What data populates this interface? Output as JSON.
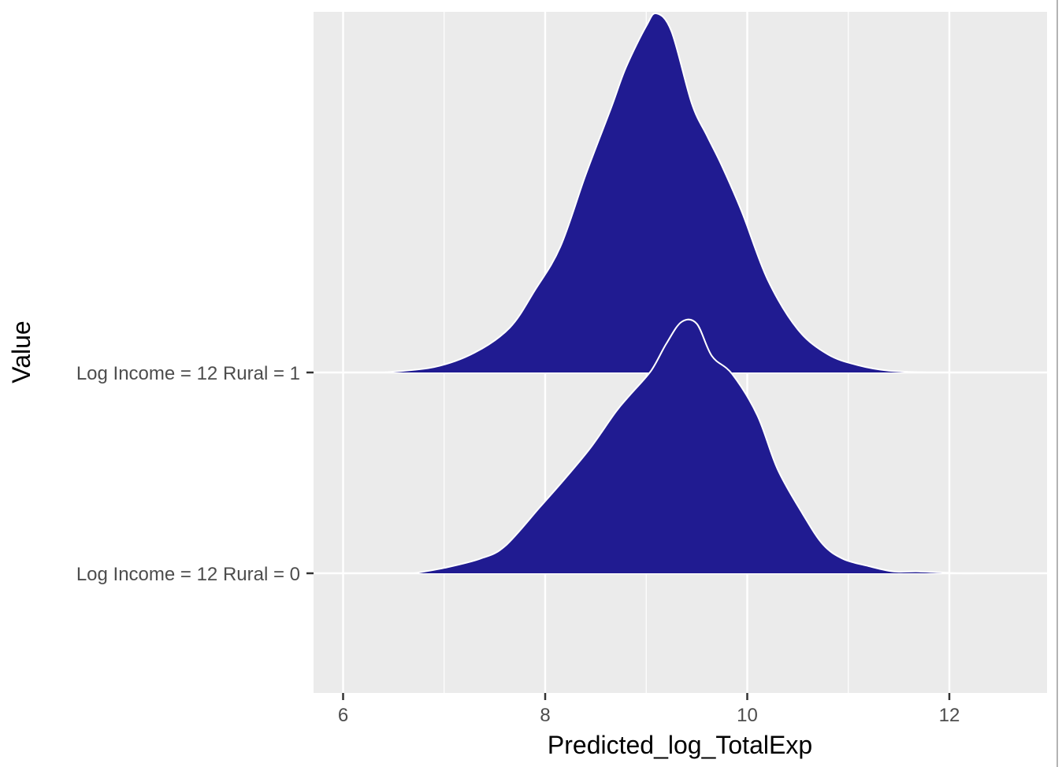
{
  "chart_data": {
    "type": "ridgeline",
    "title": "",
    "xlabel": "Predicted_log_TotalExp",
    "ylabel": "Value",
    "xlim": [
      5.85,
      13.5
    ],
    "x_ticks": [
      6,
      8,
      10,
      12
    ],
    "x_tick_labels": [
      "6",
      "8",
      "10",
      "12"
    ],
    "grid": true,
    "fill_color": "#201b91",
    "outline_color": "#ffffff",
    "panel_background": "#ebebeb",
    "series": [
      {
        "name": "Log Income = 12 Rural = 0",
        "x": [
          6.7,
          7.0,
          7.35,
          7.6,
          7.95,
          8.2,
          8.45,
          8.7,
          8.85,
          9.05,
          9.2,
          9.35,
          9.5,
          9.65,
          9.85,
          10.1,
          10.3,
          10.55,
          10.75,
          10.95,
          11.2,
          11.45,
          11.7,
          12.1,
          12.3
        ],
        "density": [
          0.0,
          0.03,
          0.08,
          0.15,
          0.37,
          0.53,
          0.7,
          0.9,
          1.0,
          1.13,
          1.28,
          1.4,
          1.39,
          1.21,
          1.11,
          0.88,
          0.58,
          0.33,
          0.16,
          0.08,
          0.04,
          0.01,
          0.01,
          0.0,
          0.0
        ]
      },
      {
        "name": "Log Income = 12 Rural = 1",
        "x": [
          6.4,
          6.9,
          7.3,
          7.65,
          7.9,
          8.15,
          8.4,
          8.65,
          8.8,
          9.0,
          9.1,
          9.25,
          9.45,
          9.6,
          9.75,
          9.95,
          10.2,
          10.5,
          10.8,
          11.1,
          11.4,
          11.8
        ],
        "density": [
          0.0,
          0.03,
          0.11,
          0.25,
          0.46,
          0.7,
          1.1,
          1.47,
          1.7,
          1.93,
          2.0,
          1.9,
          1.5,
          1.32,
          1.15,
          0.89,
          0.52,
          0.24,
          0.1,
          0.04,
          0.01,
          0.0
        ]
      }
    ]
  }
}
